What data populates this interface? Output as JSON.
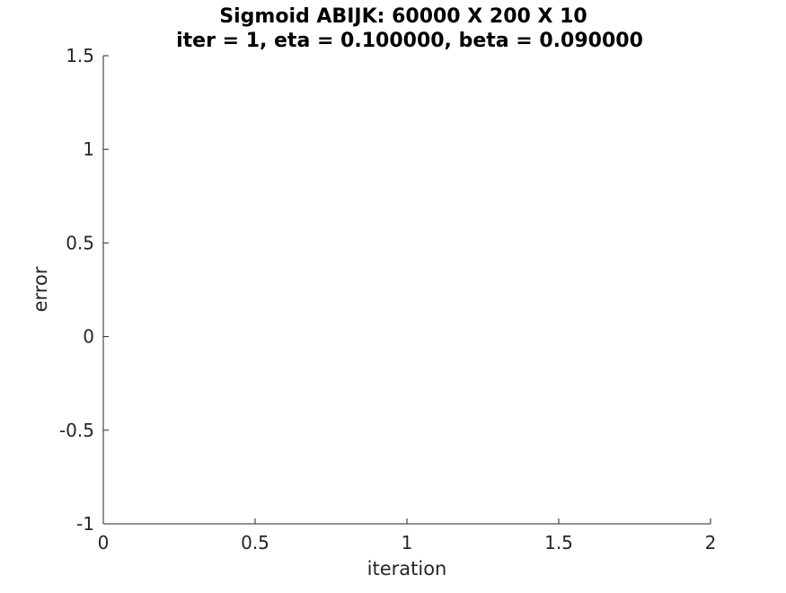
{
  "figure": {
    "background": "#ffffff",
    "axis_color": "#262626"
  },
  "chart_data": {
    "type": "line",
    "title": "Sigmoid ABIJK: 60000 X 200 X 10",
    "subtitle": "iter = 1, eta = 0.100000, beta = 0.090000",
    "xlabel": "iteration",
    "ylabel": "error",
    "xlim": [
      0,
      2
    ],
    "ylim": [
      -1,
      1.5
    ],
    "x_ticks": [
      0,
      0.5,
      1,
      1.5,
      2
    ],
    "x_tick_labels": [
      "0",
      "0.5",
      "1",
      "1.5",
      "2"
    ],
    "y_ticks": [
      -1,
      -0.5,
      0,
      0.5,
      1,
      1.5
    ],
    "y_tick_labels": [
      "-1",
      "-0.5",
      "0",
      "0.5",
      "1",
      "1.5"
    ],
    "grid": false,
    "box": false,
    "series": []
  }
}
